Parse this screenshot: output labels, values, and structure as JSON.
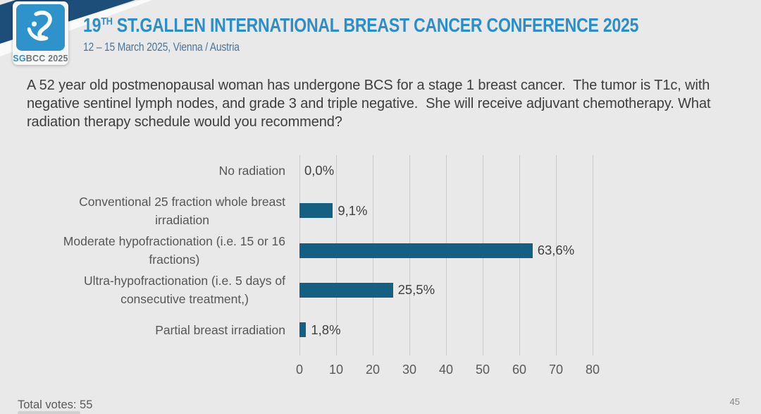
{
  "header": {
    "title_number": "19",
    "title_sup": "TH",
    "title_rest": " ST.GALLEN INTERNATIONAL BREAST CANCER CONFERENCE 2025",
    "subtitle": "12 – 15 March 2025, Vienna / Austria",
    "logo": {
      "sg": "SG",
      "rest": "BCC 2025"
    }
  },
  "question": "A 52 year old postmenopausal woman has undergone BCS for a stage 1 breast cancer.  The tumor is T1c, with negative sentinel lymph nodes, and grade 3 and triple negative.  She will receive adjuvant chemotherapy. What radiation therapy schedule would you recommend?",
  "chart_data": {
    "type": "bar",
    "orientation": "horizontal",
    "title": "",
    "categories": [
      "No radiation",
      "Conventional 25 fraction whole breast\nirradiation",
      "Moderate hypofractionation (i.e. 15 or 16\nfractions)",
      "Ultra-hypofractionation (i.e. 5 days of\nconsecutive treatment,)",
      "Partial breast irradiation"
    ],
    "values": [
      0.0,
      9.1,
      63.6,
      25.5,
      1.8
    ],
    "value_labels": [
      "0,0%",
      "9,1%",
      "63,6%",
      "25,5%",
      "1,8%"
    ],
    "x_ticks": [
      0,
      10,
      20,
      30,
      40,
      50,
      60,
      70,
      80
    ],
    "xlim": [
      0,
      80
    ],
    "grid": true,
    "legend": false,
    "bar_color": "#156082",
    "gridline_color": "#c9cbcc"
  },
  "footer": {
    "total_votes": "Total votes: 55",
    "page_number": "45"
  }
}
